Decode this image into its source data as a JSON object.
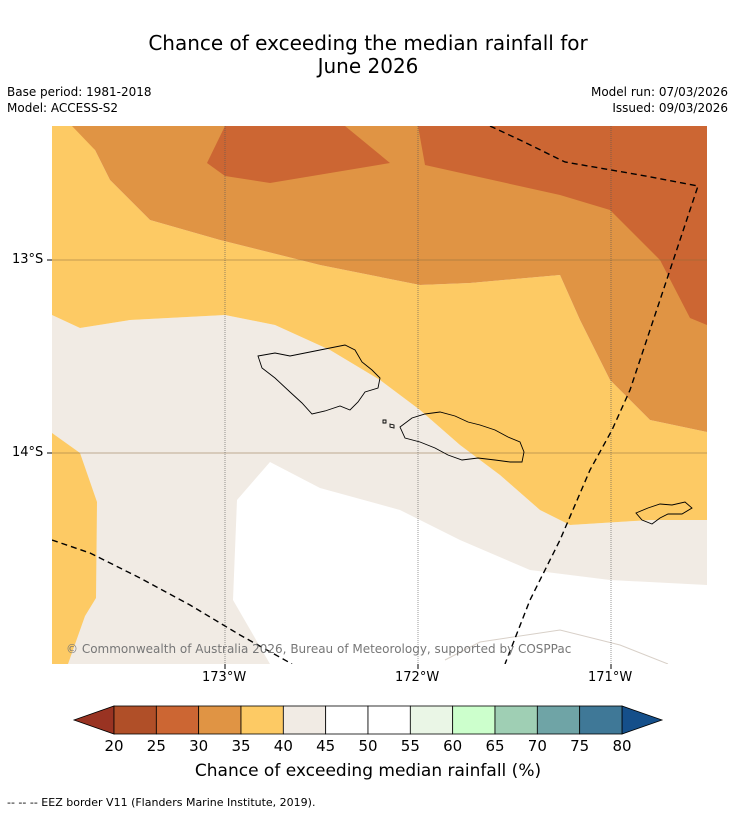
{
  "header": {
    "title_line1": "Chance of exceeding the median rainfall for",
    "title_line2": "June 2026",
    "base_period": "Base period: 1981-2018",
    "model": "Model: ACCESS-S2",
    "model_run": "Model run: 07/03/2026",
    "issued": "Issued: 09/03/2026"
  },
  "map": {
    "lat_labels": [
      "13°S",
      "14°S"
    ],
    "lon_labels": [
      "173°W",
      "172°W",
      "171°W"
    ],
    "copyright": "© Commonwealth of Australia 2026, Bureau of Meteorology, supported by COSPPac",
    "colors": {
      "c25_30": "#cc6633",
      "c30_35": "#e09444",
      "c35_40": "#fdca64",
      "c40_45": "#f1ebe4",
      "c45_55": "#ffffff"
    }
  },
  "colorbar": {
    "labels": [
      "20",
      "25",
      "30",
      "35",
      "40",
      "45",
      "50",
      "55",
      "60",
      "65",
      "70",
      "75",
      "80"
    ],
    "colors": [
      "#b04f28",
      "#cc6633",
      "#e09444",
      "#fdca64",
      "#f1ebe4",
      "#ffffff",
      "#ffffff",
      "#eaf6e6",
      "#ccffcc",
      "#9fcfb4",
      "#6fa4a6",
      "#3f7897"
    ],
    "under_color": "#993322",
    "over_color": "#154f8a",
    "title": "Chance of exceeding median rainfall (%)"
  },
  "footer": {
    "legend_text": "--  --  -- EEZ border V11 (Flanders Marine Institute, 2019)."
  }
}
